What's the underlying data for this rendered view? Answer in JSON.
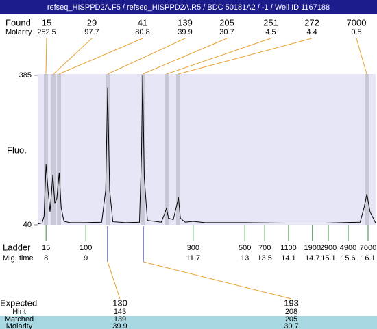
{
  "title": "refseq_HISPPD2A.F5 / refseq_HISPPD2A.R5 / BDC 50181A2 / -1 / Well ID 1167188",
  "found": {
    "label": "Found",
    "molarity_label": "Molarity",
    "sizes": [
      15,
      29,
      41,
      139,
      205,
      251,
      272,
      7000
    ],
    "molarity": [
      252.5,
      97.7,
      80.8,
      39.9,
      30.7,
      4.5,
      4.4,
      0.5
    ]
  },
  "chart_data": {
    "type": "line",
    "ylabel": "Fluo.",
    "xlim": [
      7.79,
      16.29
    ],
    "ylim": [
      40,
      385
    ],
    "yticks": [
      40,
      385
    ],
    "x": [
      7.79,
      7.9,
      7.95,
      8.0,
      8.05,
      8.1,
      8.17,
      8.22,
      8.27,
      8.33,
      8.38,
      8.45,
      8.6,
      9.0,
      9.4,
      9.5,
      9.55,
      9.6,
      9.68,
      10.0,
      10.35,
      10.4,
      10.43,
      10.47,
      10.55,
      10.9,
      11.0,
      11.03,
      11.08,
      11.2,
      11.3,
      11.33,
      11.38,
      11.5,
      11.7,
      12.0,
      13.0,
      14.0,
      15.0,
      15.9,
      16.0,
      16.07,
      16.15,
      16.29
    ],
    "series": [
      {
        "color": "#000000",
        "values": [
          42,
          44,
          60,
          179,
          120,
          70,
          155,
          90,
          100,
          160,
          80,
          48,
          45,
          45,
          46,
          120,
          357,
          120,
          47,
          45,
          46,
          200,
          385,
          150,
          50,
          46,
          70,
          78,
          55,
          52,
          90,
          103,
          55,
          46,
          48,
          45,
          45,
          44,
          44,
          46,
          80,
          111,
          70,
          44
        ]
      }
    ]
  },
  "ladder": {
    "label": "Ladder",
    "time_label": "Mig. time",
    "sizes": [
      15,
      100,
      300,
      500,
      700,
      1100,
      1900,
      2900,
      4900,
      7000
    ],
    "times": [
      8,
      9,
      11.7,
      13,
      13.5,
      14.1,
      14.7,
      15.1,
      15.6,
      16.1
    ]
  },
  "expected": {
    "label": "Expected",
    "hint_label": "Hint",
    "matched_label": "Matched",
    "molarity_label": "Molarity",
    "values": [
      130,
      193
    ],
    "hint": [
      143,
      208
    ],
    "matched": [
      139,
      205
    ],
    "molarity": [
      39.9,
      30.7
    ]
  }
}
